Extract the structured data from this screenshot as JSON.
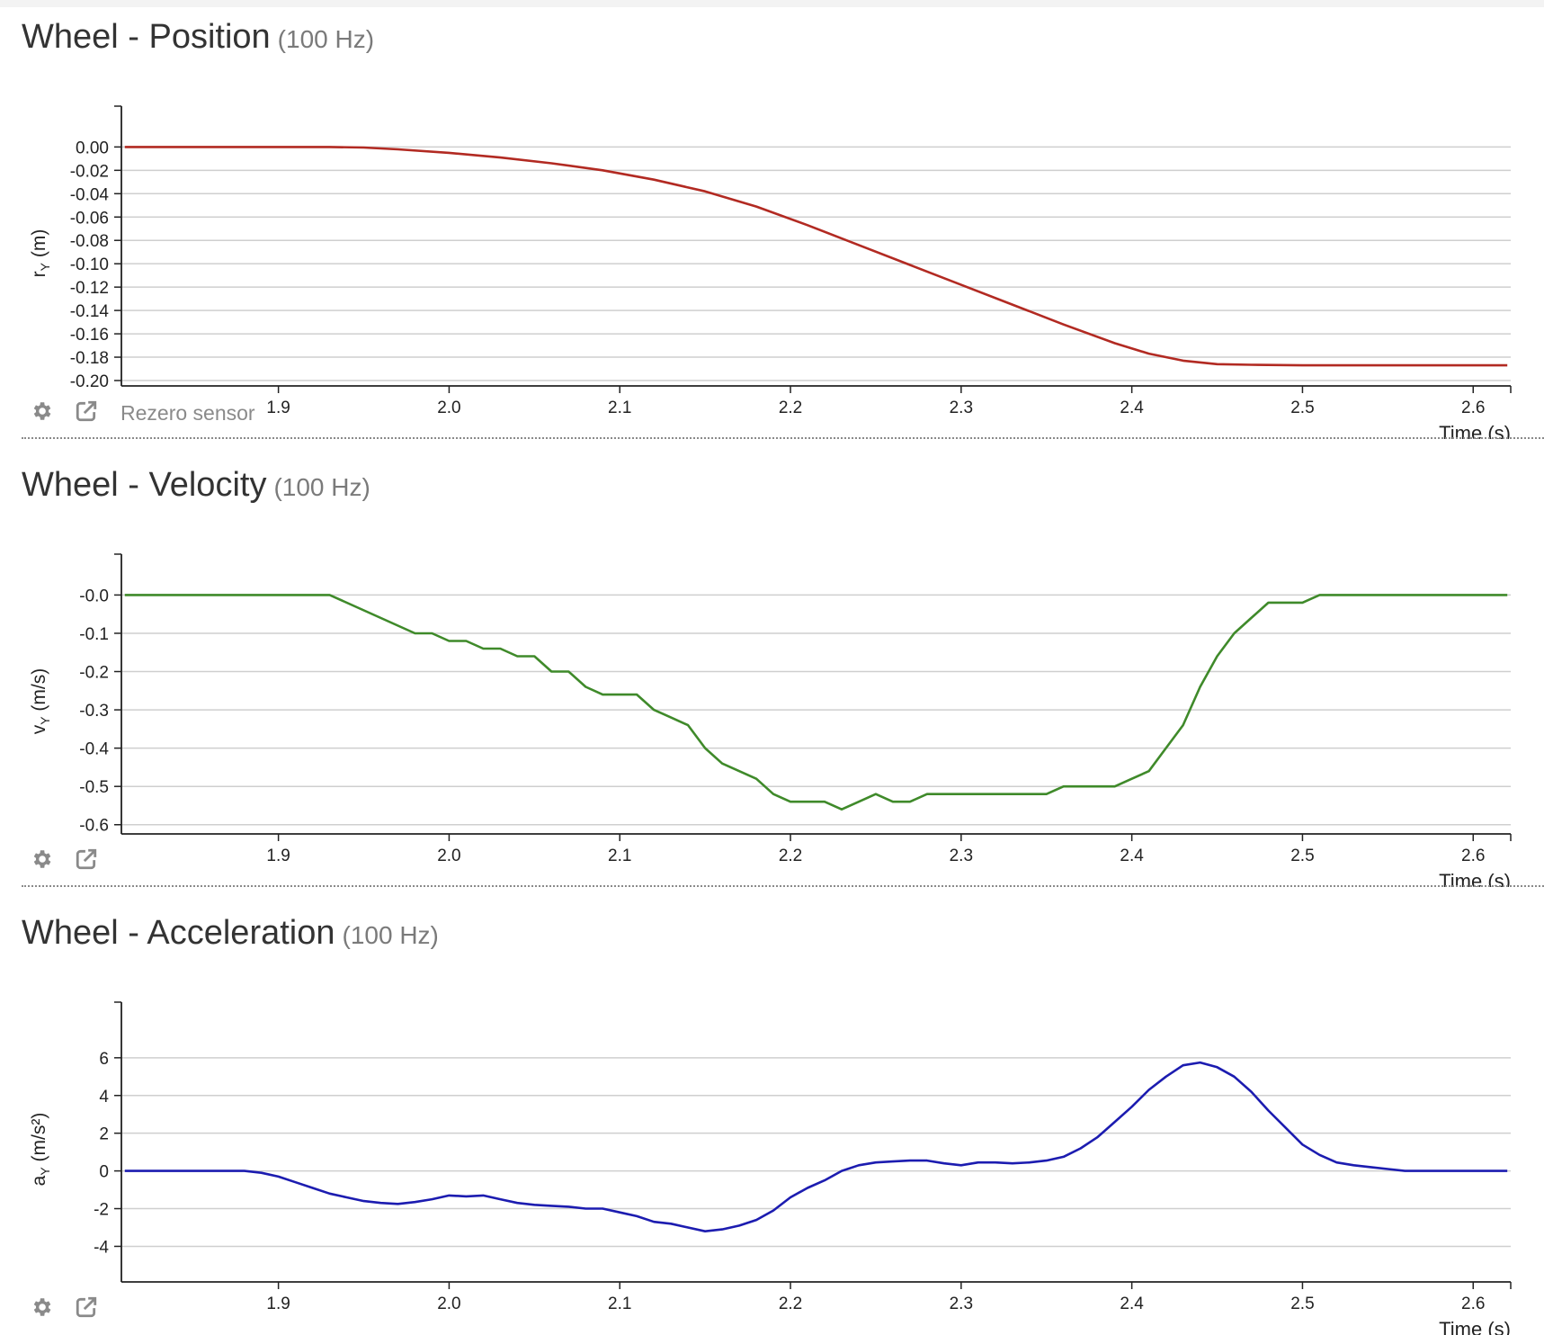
{
  "panels": [
    {
      "id": "position",
      "title": "Wheel - Position",
      "rate": "(100 Hz)",
      "rezero_label": "Rezero sensor",
      "chart_data": {
        "type": "line",
        "ylabel": "r",
        "ylabel_sub": "Y",
        "ylabel_unit": " (m)",
        "xlabel": "Time (s)",
        "xlim": [
          1.808,
          2.622
        ],
        "ylim": [
          -0.2,
          0.018
        ],
        "xticks": [
          1.9,
          2.0,
          2.1,
          2.2,
          2.3,
          2.4,
          2.5,
          2.6
        ],
        "xtick_labels": [
          "1.9",
          "2.0",
          "2.1",
          "2.2",
          "2.3",
          "2.4",
          "2.5",
          "2.6"
        ],
        "yticks": [
          0.0,
          -0.02,
          -0.04,
          -0.06,
          -0.08,
          -0.1,
          -0.12,
          -0.14,
          -0.16,
          -0.18,
          -0.2
        ],
        "ytick_labels": [
          "0.00",
          "-0.02",
          "-0.04",
          "-0.06",
          "-0.08",
          "-0.10",
          "-0.12",
          "-0.14",
          "-0.16",
          "-0.18",
          "-0.20"
        ],
        "grid": true,
        "color": "#b22a22",
        "x": [
          1.81,
          1.85,
          1.9,
          1.93,
          1.95,
          1.97,
          2.0,
          2.03,
          2.06,
          2.09,
          2.12,
          2.15,
          2.18,
          2.21,
          2.24,
          2.27,
          2.3,
          2.33,
          2.36,
          2.39,
          2.41,
          2.43,
          2.45,
          2.47,
          2.5,
          2.55,
          2.62
        ],
        "y": [
          0.0,
          0.0,
          0.0,
          0.0,
          -0.0005,
          -0.002,
          -0.005,
          -0.009,
          -0.014,
          -0.02,
          -0.028,
          -0.038,
          -0.051,
          -0.067,
          -0.084,
          -0.101,
          -0.118,
          -0.135,
          -0.152,
          -0.168,
          -0.177,
          -0.183,
          -0.186,
          -0.1865,
          -0.187,
          -0.187,
          -0.187
        ]
      }
    },
    {
      "id": "velocity",
      "title": "Wheel - Velocity",
      "rate": "(100 Hz)",
      "chart_data": {
        "type": "line",
        "ylabel": "v",
        "ylabel_sub": "Y",
        "ylabel_unit": " (m/s)",
        "xlabel": "Time (s)",
        "xlim": [
          1.808,
          2.622
        ],
        "ylim": [
          -0.61,
          0.055
        ],
        "xticks": [
          1.9,
          2.0,
          2.1,
          2.2,
          2.3,
          2.4,
          2.5,
          2.6
        ],
        "xtick_labels": [
          "1.9",
          "2.0",
          "2.1",
          "2.2",
          "2.3",
          "2.4",
          "2.5",
          "2.6"
        ],
        "yticks": [
          0.0,
          -0.1,
          -0.2,
          -0.3,
          -0.4,
          -0.5,
          -0.6
        ],
        "ytick_labels": [
          "-0.0",
          "-0.1",
          "-0.2",
          "-0.3",
          "-0.4",
          "-0.5",
          "-0.6"
        ],
        "grid": true,
        "color": "#3f8a2a",
        "x": [
          1.81,
          1.93,
          1.98,
          1.99,
          2.0,
          2.01,
          2.02,
          2.03,
          2.04,
          2.05,
          2.06,
          2.07,
          2.08,
          2.09,
          2.1,
          2.11,
          2.12,
          2.13,
          2.14,
          2.15,
          2.16,
          2.17,
          2.18,
          2.19,
          2.2,
          2.21,
          2.22,
          2.23,
          2.24,
          2.25,
          2.26,
          2.27,
          2.28,
          2.29,
          2.3,
          2.31,
          2.32,
          2.33,
          2.34,
          2.35,
          2.36,
          2.37,
          2.38,
          2.39,
          2.4,
          2.41,
          2.42,
          2.43,
          2.44,
          2.45,
          2.46,
          2.47,
          2.48,
          2.49,
          2.5,
          2.51,
          2.62
        ],
        "y": [
          0.0,
          0.0,
          -0.1,
          -0.1,
          -0.12,
          -0.12,
          -0.14,
          -0.14,
          -0.16,
          -0.16,
          -0.2,
          -0.2,
          -0.24,
          -0.26,
          -0.26,
          -0.26,
          -0.3,
          -0.32,
          -0.34,
          -0.4,
          -0.44,
          -0.46,
          -0.48,
          -0.52,
          -0.54,
          -0.54,
          -0.54,
          -0.56,
          -0.54,
          -0.52,
          -0.54,
          -0.54,
          -0.52,
          -0.52,
          -0.52,
          -0.52,
          -0.52,
          -0.52,
          -0.52,
          -0.52,
          -0.5,
          -0.5,
          -0.5,
          -0.5,
          -0.48,
          -0.46,
          -0.4,
          -0.34,
          -0.24,
          -0.16,
          -0.1,
          -0.06,
          -0.02,
          -0.02,
          -0.02,
          0.0,
          0.0
        ]
      }
    },
    {
      "id": "acceleration",
      "title": "Wheel - Acceleration",
      "rate": "(100 Hz)",
      "chart_data": {
        "type": "line",
        "ylabel": "a",
        "ylabel_sub": "Y",
        "ylabel_unit": " (m/s²)",
        "xlabel": "Time (s)",
        "xlim": [
          1.808,
          2.622
        ],
        "ylim": [
          -5.6,
          7.9
        ],
        "xticks": [
          1.9,
          2.0,
          2.1,
          2.2,
          2.3,
          2.4,
          2.5,
          2.6
        ],
        "xtick_labels": [
          "1.9",
          "2.0",
          "2.1",
          "2.2",
          "2.3",
          "2.4",
          "2.5",
          "2.6"
        ],
        "yticks": [
          6,
          4,
          2,
          0,
          -2,
          -4
        ],
        "ytick_labels": [
          "6",
          "4",
          "2",
          "0",
          "-2",
          "-4"
        ],
        "grid": true,
        "color": "#1c1cb0",
        "x": [
          1.81,
          1.88,
          1.89,
          1.9,
          1.91,
          1.92,
          1.93,
          1.94,
          1.95,
          1.96,
          1.97,
          1.98,
          1.99,
          2.0,
          2.01,
          2.02,
          2.03,
          2.04,
          2.05,
          2.06,
          2.07,
          2.08,
          2.09,
          2.1,
          2.11,
          2.12,
          2.13,
          2.14,
          2.15,
          2.16,
          2.17,
          2.18,
          2.19,
          2.2,
          2.21,
          2.22,
          2.23,
          2.24,
          2.25,
          2.26,
          2.27,
          2.28,
          2.29,
          2.3,
          2.31,
          2.32,
          2.33,
          2.34,
          2.35,
          2.36,
          2.37,
          2.38,
          2.39,
          2.4,
          2.41,
          2.42,
          2.43,
          2.44,
          2.45,
          2.46,
          2.47,
          2.48,
          2.49,
          2.5,
          2.51,
          2.52,
          2.53,
          2.54,
          2.55,
          2.56,
          2.62
        ],
        "y": [
          0.0,
          0.0,
          -0.1,
          -0.3,
          -0.6,
          -0.9,
          -1.2,
          -1.4,
          -1.6,
          -1.7,
          -1.75,
          -1.65,
          -1.5,
          -1.3,
          -1.35,
          -1.3,
          -1.5,
          -1.7,
          -1.8,
          -1.85,
          -1.9,
          -2.0,
          -2.0,
          -2.2,
          -2.4,
          -2.7,
          -2.8,
          -3.0,
          -3.2,
          -3.1,
          -2.9,
          -2.6,
          -2.1,
          -1.4,
          -0.9,
          -0.5,
          0.0,
          0.3,
          0.45,
          0.5,
          0.55,
          0.55,
          0.4,
          0.3,
          0.45,
          0.45,
          0.4,
          0.45,
          0.55,
          0.75,
          1.2,
          1.8,
          2.6,
          3.4,
          4.3,
          5.0,
          5.6,
          5.75,
          5.5,
          5.0,
          4.2,
          3.2,
          2.3,
          1.4,
          0.85,
          0.45,
          0.3,
          0.2,
          0.1,
          0.0,
          0.0
        ]
      }
    }
  ]
}
